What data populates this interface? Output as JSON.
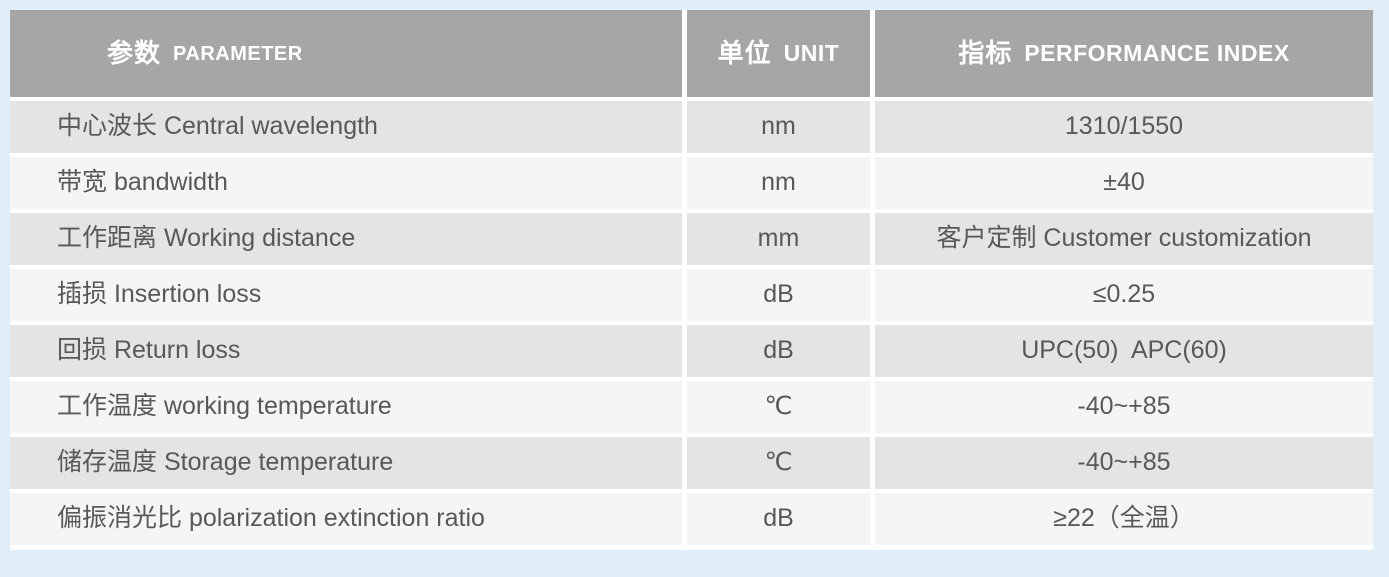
{
  "colors": {
    "page-background": "#e2eef7",
    "header-background": "#a6a6a6",
    "header-text": "#ffffff",
    "row-odd-background": "#e4e4e5",
    "row-even-background": "#f5f5f6",
    "cell-text": "#57585a",
    "grid-gap": "#ffffff"
  },
  "table": {
    "header": {
      "parameter": {
        "cn": "参数",
        "en": "PARAMETER"
      },
      "unit": {
        "cn": "单位",
        "en": "UNIT"
      },
      "performance_index": {
        "cn": "指标",
        "en": "PERFORMANCE INDEX"
      }
    },
    "rows": [
      {
        "param": "中心波长 Central wavelength",
        "unit": "nm",
        "value": "1310/1550"
      },
      {
        "param": "带宽 bandwidth",
        "unit": "nm",
        "value": "±40"
      },
      {
        "param": "工作距离 Working distance",
        "unit": "mm",
        "value": "客户定制 Customer customization"
      },
      {
        "param": "插损 Insertion loss",
        "unit": "dB",
        "value": "≤0.25"
      },
      {
        "param": "回损 Return loss",
        "unit": "dB",
        "value": "UPC(50)  APC(60)"
      },
      {
        "param": "工作温度 working temperature",
        "unit": "℃",
        "value": "-40~+85"
      },
      {
        "param": "储存温度 Storage temperature",
        "unit": "℃",
        "value": "-40~+85"
      },
      {
        "param": "偏振消光比 polarization extinction ratio",
        "unit": "dB",
        "value": "≥22（全温）"
      }
    ]
  }
}
